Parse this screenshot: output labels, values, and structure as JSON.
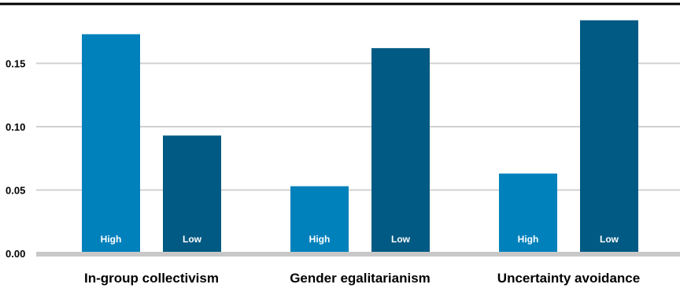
{
  "chart_data": {
    "type": "bar",
    "title": "",
    "xlabel": "",
    "ylabel": "",
    "ylim": [
      0,
      0.19
    ],
    "yticks": [
      "0.00",
      "0.05",
      "0.10",
      "0.15"
    ],
    "grid": true,
    "categories": [
      "In-group collectivism",
      "Gender egalitarianism",
      "Uncertainty avoidance"
    ],
    "series": [
      {
        "name": "High",
        "color": "#0081BC",
        "values": [
          0.173,
          0.053,
          0.063
        ]
      },
      {
        "name": "Low",
        "color": "#005A83",
        "values": [
          0.093,
          0.162,
          0.184
        ]
      }
    ]
  }
}
